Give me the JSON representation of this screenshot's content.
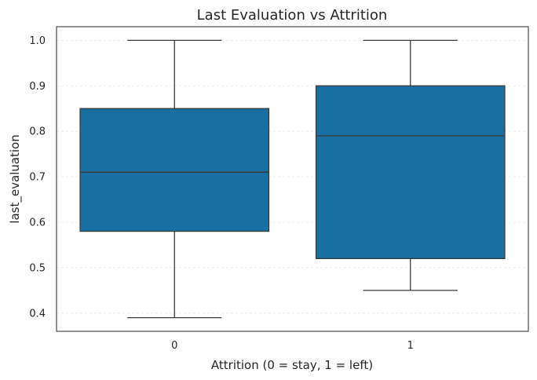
{
  "chart_data": {
    "type": "box",
    "title": "Last Evaluation vs Attrition",
    "xlabel": "Attrition (0 = stay, 1 = left)",
    "ylabel": "last_evaluation",
    "categories": [
      "0",
      "1"
    ],
    "boxes": [
      {
        "category": "0",
        "whisker_low": 0.39,
        "q1": 0.58,
        "median": 0.71,
        "q3": 0.85,
        "whisker_high": 1.0
      },
      {
        "category": "1",
        "whisker_low": 0.45,
        "q1": 0.52,
        "median": 0.79,
        "q3": 0.9,
        "whisker_high": 1.0
      }
    ],
    "ylim": [
      0.36,
      1.03
    ],
    "yticks": [
      "0.4",
      "0.5",
      "0.6",
      "0.7",
      "0.8",
      "0.9",
      "1.0"
    ],
    "grid": "horizontal dashed",
    "colors": {
      "box_fill": "#1770a1",
      "lines": "#3a3a3a"
    }
  }
}
